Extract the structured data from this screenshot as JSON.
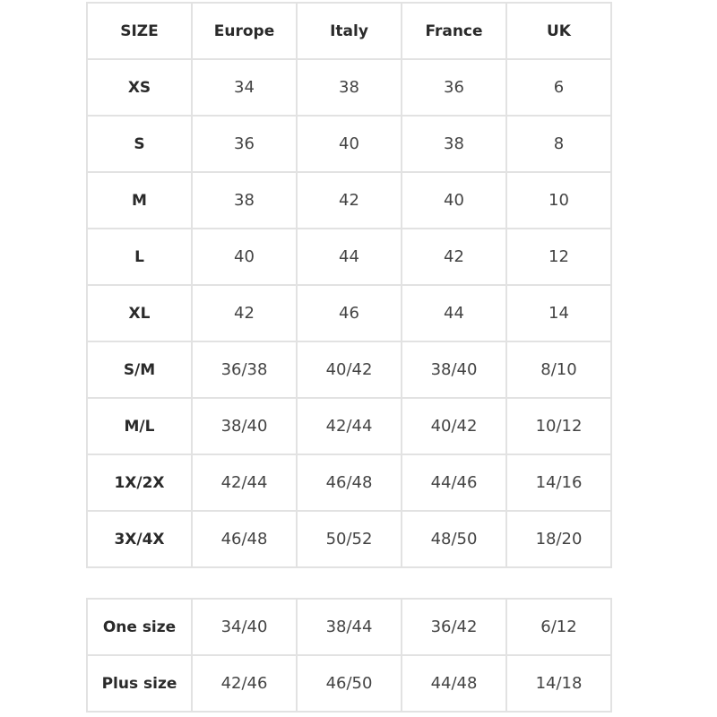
{
  "size_table": {
    "headers": [
      "SIZE",
      "Europe",
      "Italy",
      "France",
      "UK"
    ],
    "rows": [
      [
        "XS",
        "34",
        "38",
        "36",
        "6"
      ],
      [
        "S",
        "36",
        "40",
        "38",
        "8"
      ],
      [
        "M",
        "38",
        "42",
        "40",
        "10"
      ],
      [
        "L",
        "40",
        "44",
        "42",
        "12"
      ],
      [
        "XL",
        "42",
        "46",
        "44",
        "14"
      ],
      [
        "S/M",
        "36/38",
        "40/42",
        "38/40",
        "8/10"
      ],
      [
        "M/L",
        "38/40",
        "42/44",
        "40/42",
        "10/12"
      ],
      [
        "1X/2X",
        "42/44",
        "46/48",
        "44/46",
        "14/16"
      ],
      [
        "3X/4X",
        "46/48",
        "50/52",
        "48/50",
        "18/20"
      ]
    ]
  },
  "extra_table": {
    "rows": [
      [
        "One size",
        "34/40",
        "38/44",
        "36/42",
        "6/12"
      ],
      [
        "Plus size",
        "42/46",
        "46/50",
        "44/48",
        "14/18"
      ]
    ]
  }
}
